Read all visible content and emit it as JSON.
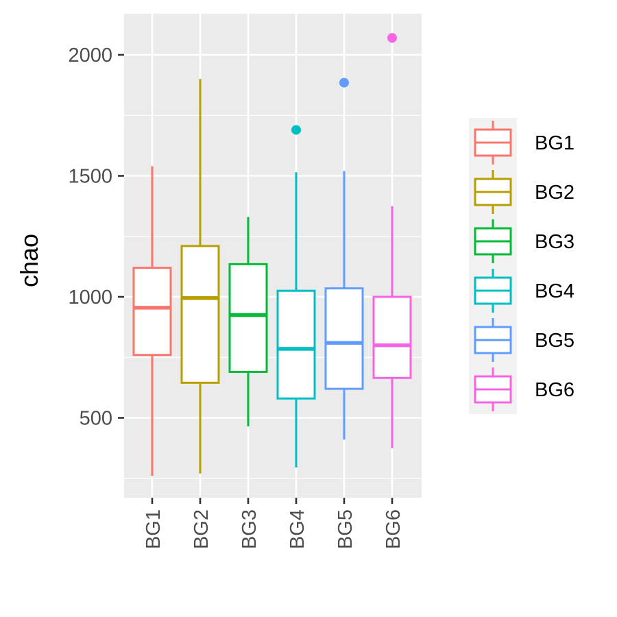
{
  "chart_data": {
    "type": "box",
    "title": "",
    "xlabel": "",
    "ylabel": "chao",
    "ylim": [
      170,
      2170
    ],
    "yticks": [
      500,
      1000,
      1500,
      2000
    ],
    "ytick_labels": [
      "500",
      "1000",
      "1500",
      "2000"
    ],
    "grid": true,
    "legend": {
      "position": "right",
      "title": "",
      "entries": [
        "BG1",
        "BG2",
        "BG3",
        "BG4",
        "BG5",
        "BG6"
      ]
    },
    "categories": [
      "BG1",
      "BG2",
      "BG3",
      "BG4",
      "BG5",
      "BG6"
    ],
    "series": [
      {
        "name": "BG1",
        "color": "#F8766D",
        "min": 260,
        "q1": 760,
        "median": 955,
        "q3": 1120,
        "max": 1540,
        "outliers": []
      },
      {
        "name": "BG2",
        "color": "#B79F00",
        "min": 270,
        "q1": 645,
        "median": 995,
        "q3": 1210,
        "max": 1900,
        "outliers": []
      },
      {
        "name": "BG3",
        "color": "#00BA38",
        "min": 465,
        "q1": 690,
        "median": 925,
        "q3": 1135,
        "max": 1330,
        "outliers": []
      },
      {
        "name": "BG4",
        "color": "#00BFC4",
        "min": 295,
        "q1": 580,
        "median": 785,
        "q3": 1025,
        "max": 1515,
        "outliers": [
          1690
        ]
      },
      {
        "name": "BG5",
        "color": "#619CFF",
        "min": 410,
        "q1": 620,
        "median": 810,
        "q3": 1035,
        "max": 1520,
        "outliers": [
          1885
        ]
      },
      {
        "name": "BG6",
        "color": "#F564E3",
        "min": 375,
        "q1": 665,
        "median": 800,
        "q3": 1000,
        "max": 1375,
        "outliers": [
          2070
        ]
      }
    ]
  }
}
